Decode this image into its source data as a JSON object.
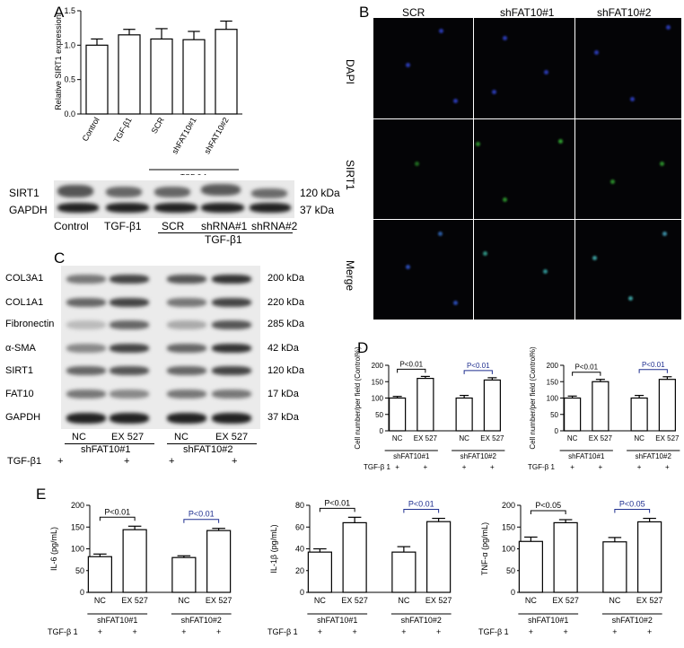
{
  "panels": {
    "a": "A",
    "b": "B",
    "c": "C",
    "d": "D",
    "e": "E"
  },
  "panelA": {
    "ylabel": "Relative SIRT1 expression",
    "groupLabel": "TGF-β 1",
    "blot_rows": [
      "SIRT1",
      "GAPDH"
    ],
    "blot_kda": [
      "120 kDa",
      "37 kDa"
    ],
    "blot_lanes": [
      "Control",
      "TGF-β1",
      "SCR",
      "shRNA#1",
      "shRNA#2"
    ],
    "blot_group": "TGF-β1"
  },
  "panelB": {
    "cols": [
      "SCR",
      "shFAT10#1",
      "shFAT10#2"
    ],
    "rows": [
      "DAPI",
      "SIRT1",
      "Merge"
    ]
  },
  "panelC": {
    "rows": [
      "COL3A1",
      "COL1A1",
      "Fibronectin",
      "α-SMA",
      "SIRT1",
      "FAT10",
      "GAPDH"
    ],
    "kda": [
      "200 kDa",
      "220 kDa",
      "285 kDa",
      "42 kDa",
      "120 kDa",
      "17 kDa",
      "37 kDa"
    ],
    "lanes": [
      "NC",
      "EX 527",
      "NC",
      "EX 527"
    ],
    "groups": [
      "shFAT10#1",
      "shFAT10#2"
    ],
    "tgf": "TGF-β1",
    "plus": "+"
  },
  "shared": {
    "sub1": "shFAT10#1",
    "sub2": "shFAT10#2",
    "tgf": "TGF-β 1",
    "plus": "+"
  },
  "colors": {
    "bar_stroke": "#000000",
    "pvalue_blue": "#1f2f8f",
    "black": "#000000"
  },
  "chart_data": [
    {
      "id": "A",
      "type": "bar",
      "categories": [
        "Control",
        "TGF-β1",
        "SCR",
        "shFAT10#1",
        "shFAT10#2"
      ],
      "values": [
        1.0,
        1.15,
        1.09,
        1.08,
        1.23
      ],
      "errors": [
        0.09,
        0.08,
        0.15,
        0.12,
        0.12
      ],
      "ylabel": "Relative SIRT1 expression",
      "ylim": [
        0,
        1.5
      ],
      "yticks": [
        "0.0",
        "0.5",
        "1.0",
        "1.5"
      ]
    },
    {
      "id": "D1",
      "type": "bar",
      "categories": [
        "NC",
        "EX 527",
        "NC",
        "EX 527"
      ],
      "values": [
        100,
        160,
        100,
        155
      ],
      "errors": [
        5,
        6,
        8,
        7
      ],
      "ylabel": "Cell number/per field (Control%)",
      "ylim": [
        0,
        200
      ],
      "yticks": [
        "0",
        "50",
        "100",
        "150",
        "200"
      ],
      "pvalues": [
        "P<0.01",
        "P<0.01"
      ]
    },
    {
      "id": "D2",
      "type": "bar",
      "categories": [
        "NC",
        "EX 527",
        "NC",
        "EX 527"
      ],
      "values": [
        100,
        150,
        100,
        157
      ],
      "errors": [
        6,
        7,
        8,
        8
      ],
      "ylabel": "Cell number/per field (Control%)",
      "ylim": [
        0,
        200
      ],
      "yticks": [
        "0",
        "50",
        "100",
        "150",
        "200"
      ],
      "pvalues": [
        "P<0.01",
        "P<0.01"
      ]
    },
    {
      "id": "E1",
      "type": "bar",
      "categories": [
        "NC",
        "EX 527",
        "NC",
        "EX 527"
      ],
      "values": [
        82,
        144,
        80,
        142
      ],
      "errors": [
        6,
        8,
        4,
        5
      ],
      "ylabel": "IL-6 (pg/mL)",
      "ylim": [
        0,
        200
      ],
      "yticks": [
        "0",
        "50",
        "100",
        "150",
        "200"
      ],
      "pvalues": [
        "P<0.01",
        "P<0.01"
      ]
    },
    {
      "id": "E2",
      "type": "bar",
      "categories": [
        "NC",
        "EX 527",
        "NC",
        "EX 527"
      ],
      "values": [
        37,
        64,
        37,
        65
      ],
      "errors": [
        3,
        5,
        5,
        3
      ],
      "ylabel": "IL-1β (pg/mL)",
      "ylim": [
        0,
        80
      ],
      "yticks": [
        "0",
        "20",
        "40",
        "60",
        "80"
      ],
      "pvalues": [
        "P<0.01",
        "P<0.01"
      ]
    },
    {
      "id": "E3",
      "type": "bar",
      "categories": [
        "NC",
        "EX 527",
        "NC",
        "EX 527"
      ],
      "values": [
        117,
        160,
        116,
        162
      ],
      "errors": [
        10,
        7,
        10,
        8
      ],
      "ylabel": "TNF-α (pg/mL)",
      "ylim": [
        0,
        200
      ],
      "yticks": [
        "0",
        "50",
        "100",
        "150",
        "200"
      ],
      "pvalues": [
        "P<0.05",
        "P<0.05"
      ]
    }
  ]
}
